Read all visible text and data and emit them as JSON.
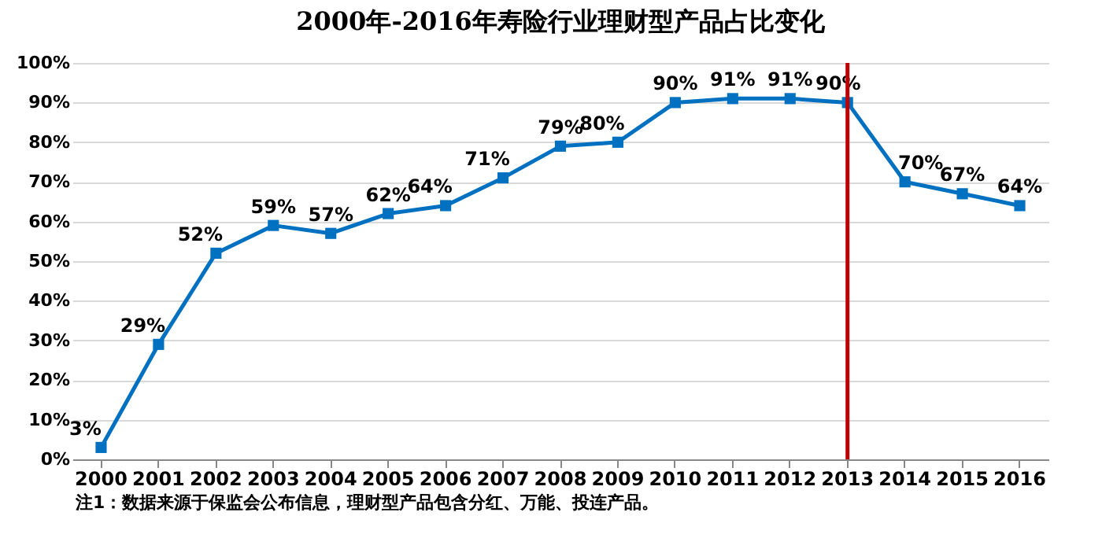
{
  "chart_data": {
    "type": "line",
    "title": "2000年-2016年寿险行业理财型产品占比变化",
    "categories": [
      "2000",
      "2001",
      "2002",
      "2003",
      "2004",
      "2005",
      "2006",
      "2007",
      "2008",
      "2009",
      "2010",
      "2011",
      "2012",
      "2013",
      "2014",
      "2015",
      "2016"
    ],
    "series": [
      {
        "color": "#0070c0",
        "values": [
          3,
          29,
          52,
          59,
          57,
          62,
          64,
          71,
          79,
          80,
          90,
          91,
          91,
          90,
          70,
          67,
          64
        ],
        "value_labels": [
          "3%",
          "29%",
          "52%",
          "59%",
          "57%",
          "62%",
          "64%",
          "71%",
          "79%",
          "80%",
          "90%",
          "91%",
          "91%",
          "90%",
          "70%",
          "67%",
          "64%"
        ]
      }
    ],
    "ylim": [
      0,
      100
    ],
    "yticks": [
      {
        "value": 0,
        "label": "0%"
      },
      {
        "value": 10,
        "label": "10%"
      },
      {
        "value": 20,
        "label": "20%"
      },
      {
        "value": 30,
        "label": "30%"
      },
      {
        "value": 40,
        "label": "40%"
      },
      {
        "value": 50,
        "label": "50%"
      },
      {
        "value": 60,
        "label": "60%"
      },
      {
        "value": 70,
        "label": "70%"
      },
      {
        "value": 80,
        "label": "80%"
      },
      {
        "value": 90,
        "label": "90%"
      },
      {
        "value": 100,
        "label": "100%"
      }
    ],
    "grid": "y",
    "marker": "square",
    "line_style": "solid",
    "ref_lines": [
      {
        "axis": "x",
        "value": "2013",
        "color": "#c00000"
      }
    ],
    "annotations": [
      "注1：数据来源于保监会公布信息，理财型产品包含分红、万能、投连产品。"
    ]
  }
}
